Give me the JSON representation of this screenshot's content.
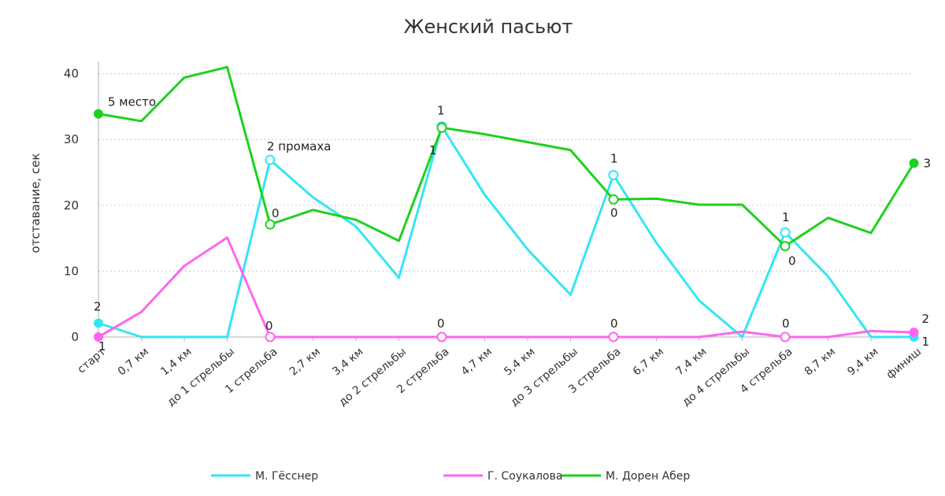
{
  "chart_data": {
    "type": "line",
    "title": "Женский пасьют",
    "xlabel": "",
    "ylabel": "отставание, сек",
    "ylim": [
      0,
      42
    ],
    "yticks": [
      0,
      10,
      20,
      30,
      40
    ],
    "grid": "horizontal-dotted",
    "legend_position": "bottom",
    "categories": [
      "старт",
      "0,7 км",
      "1,4 км",
      "до 1 стрельбы",
      "1 стрельба",
      "2,7 км",
      "3,4 км",
      "до 2 стрельбы",
      "2 стрельба",
      "4,7 км",
      "5,4 км",
      "до 3 стрельбы",
      "3 стрельба",
      "6,7 км",
      "7,4 км",
      "до 4 стрельбы",
      "4 стрельба",
      "8,7 км",
      "9,4 км",
      "финиш"
    ],
    "series": [
      {
        "name": "М. Гёсснер",
        "color": "#33e6f5",
        "values": [
          2.1,
          0,
          0,
          0,
          26.9,
          21.2,
          16.8,
          9.0,
          32.0,
          21.6,
          13.3,
          6.4,
          24.6,
          14.3,
          5.5,
          0,
          15.9,
          9.2,
          0,
          0
        ]
      },
      {
        "name": "Г. Соукалова",
        "color": "#ff66ee",
        "values": [
          0,
          3.8,
          10.8,
          15.1,
          0,
          0,
          0,
          0,
          0,
          0,
          0,
          0,
          0,
          0,
          0,
          0.8,
          0,
          0,
          0.9,
          0.7
        ]
      },
      {
        "name": "М. Дорен Абер",
        "color": "#1ed11e",
        "values": [
          33.9,
          32.8,
          39.4,
          41.0,
          17.1,
          19.3,
          17.8,
          14.6,
          31.8,
          30.8,
          29.6,
          28.4,
          20.9,
          21.0,
          20.1,
          20.1,
          13.8,
          18.1,
          15.8,
          26.4
        ]
      }
    ],
    "markers": [
      {
        "series": 0,
        "index": 0,
        "style": "filled"
      },
      {
        "series": 0,
        "index": 4,
        "style": "hollow"
      },
      {
        "series": 0,
        "index": 8,
        "style": "hollow"
      },
      {
        "series": 0,
        "index": 12,
        "style": "hollow"
      },
      {
        "series": 0,
        "index": 16,
        "style": "hollow"
      },
      {
        "series": 0,
        "index": 19,
        "style": "filled"
      },
      {
        "series": 1,
        "index": 0,
        "style": "filled"
      },
      {
        "series": 1,
        "index": 4,
        "style": "hollow"
      },
      {
        "series": 1,
        "index": 8,
        "style": "hollow"
      },
      {
        "series": 1,
        "index": 12,
        "style": "hollow"
      },
      {
        "series": 1,
        "index": 16,
        "style": "hollow"
      },
      {
        "series": 1,
        "index": 19,
        "style": "filled"
      },
      {
        "series": 2,
        "index": 0,
        "style": "filled"
      },
      {
        "series": 2,
        "index": 4,
        "style": "hollow"
      },
      {
        "series": 2,
        "index": 8,
        "style": "hollow"
      },
      {
        "series": 2,
        "index": 12,
        "style": "hollow"
      },
      {
        "series": 2,
        "index": 16,
        "style": "hollow"
      },
      {
        "series": 2,
        "index": 19,
        "style": "filled"
      }
    ],
    "annotations": [
      {
        "text": "5 место",
        "series": 2,
        "index": 0,
        "dx": 12,
        "dy": -10
      },
      {
        "text": "2",
        "series": 0,
        "index": 0,
        "dx": -6,
        "dy": -16
      },
      {
        "text": "1",
        "series": 1,
        "index": 0,
        "dx": 0,
        "dy": 17
      },
      {
        "text": "2 промаха",
        "series": 0,
        "index": 4,
        "dx": -4,
        "dy": -12
      },
      {
        "text": "0",
        "series": 2,
        "index": 4,
        "dx": 2,
        "dy": -9
      },
      {
        "text": "0",
        "series": 1,
        "index": 4,
        "dx": -6,
        "dy": -9
      },
      {
        "text": "1",
        "series": 0,
        "index": 8,
        "dx": -6,
        "dy": -15
      },
      {
        "text": "1",
        "series": 2,
        "index": 8,
        "dx": -16,
        "dy": 34
      },
      {
        "text": "0",
        "series": 1,
        "index": 8,
        "dx": -6,
        "dy": -12
      },
      {
        "text": "1",
        "series": 0,
        "index": 12,
        "dx": -4,
        "dy": -16
      },
      {
        "text": "0",
        "series": 2,
        "index": 12,
        "dx": -4,
        "dy": 22
      },
      {
        "text": "0",
        "series": 1,
        "index": 12,
        "dx": -4,
        "dy": -12
      },
      {
        "text": "1",
        "series": 0,
        "index": 16,
        "dx": -4,
        "dy": -14
      },
      {
        "text": "0",
        "series": 2,
        "index": 16,
        "dx": 4,
        "dy": 24
      },
      {
        "text": "0",
        "series": 1,
        "index": 16,
        "dx": -4,
        "dy": -12
      },
      {
        "text": "3",
        "series": 2,
        "index": 19,
        "dx": 12,
        "dy": 5
      },
      {
        "text": "2",
        "series": 1,
        "index": 19,
        "dx": 10,
        "dy": -12
      },
      {
        "text": "1",
        "series": 0,
        "index": 19,
        "dx": 10,
        "dy": 11
      }
    ]
  }
}
